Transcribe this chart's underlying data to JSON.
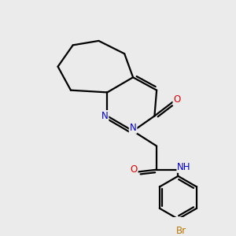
{
  "bg_color": "#ebebeb",
  "atom_colors": {
    "C": "#000000",
    "N": "#0000cc",
    "O": "#dd0000",
    "Br": "#bb7700",
    "H": "#007777"
  },
  "bond_color": "#000000",
  "bond_width": 1.6,
  "figsize": [
    3.0,
    3.0
  ],
  "dpi": 100
}
